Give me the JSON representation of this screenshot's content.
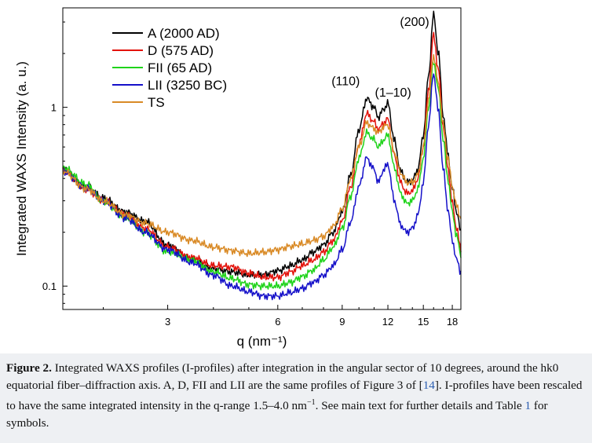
{
  "chart_data": {
    "type": "line",
    "title": "",
    "xlabel": "q (nm⁻¹)",
    "ylabel": "Integrated WAXS Intensity (a. u.)",
    "xscale": "log",
    "yscale": "log",
    "xlim": [
      1.55,
      19.0
    ],
    "ylim": [
      0.074,
      3.6
    ],
    "xticks": [
      3,
      6,
      9,
      12,
      15,
      18
    ],
    "xtick_labels": [
      "3",
      "6",
      "9",
      "12",
      "15",
      "18"
    ],
    "yticks": [
      0.1,
      1
    ],
    "ytick_labels": [
      "0.1",
      "1"
    ],
    "grid": false,
    "legend_position": "top-left",
    "annotations": [
      {
        "text": "(200)",
        "x": 14.2,
        "y": 2.85
      },
      {
        "text": "(110)",
        "x": 9.2,
        "y": 1.33
      },
      {
        "text": "(1–10)",
        "x": 12.4,
        "y": 1.15
      }
    ],
    "series": [
      {
        "name": "A (2000 AD)",
        "color": "#000000",
        "x": [
          1.55,
          1.8,
          2.0,
          2.3,
          2.6,
          3.0,
          3.5,
          4.0,
          4.5,
          5.0,
          5.5,
          6.0,
          6.5,
          7.0,
          7.5,
          8.0,
          8.5,
          9.0,
          9.5,
          10.0,
          10.5,
          11.0,
          11.3,
          11.7,
          12.0,
          12.5,
          13.0,
          13.5,
          14.0,
          14.5,
          15.0,
          15.5,
          16.0,
          16.5,
          17.0,
          17.5,
          18.0,
          18.5,
          19.0
        ],
        "y": [
          0.45,
          0.36,
          0.31,
          0.26,
          0.23,
          0.17,
          0.14,
          0.125,
          0.12,
          0.115,
          0.116,
          0.122,
          0.13,
          0.14,
          0.155,
          0.17,
          0.2,
          0.26,
          0.42,
          0.75,
          1.12,
          1.0,
          0.88,
          0.98,
          1.05,
          0.65,
          0.44,
          0.38,
          0.39,
          0.45,
          0.7,
          1.5,
          3.3,
          2.0,
          0.9,
          0.55,
          0.35,
          0.26,
          0.2
        ]
      },
      {
        "name": "D (575 AD)",
        "color": "#e3120b",
        "x": [
          1.55,
          1.8,
          2.0,
          2.3,
          2.6,
          3.0,
          3.5,
          4.0,
          4.5,
          5.0,
          5.5,
          6.0,
          6.5,
          7.0,
          7.5,
          8.0,
          8.5,
          9.0,
          9.5,
          10.0,
          10.5,
          11.0,
          11.3,
          11.7,
          12.0,
          12.5,
          13.0,
          13.5,
          14.0,
          14.5,
          15.0,
          15.5,
          16.0,
          16.5,
          17.0,
          17.5,
          18.0,
          18.5,
          19.0
        ],
        "y": [
          0.44,
          0.35,
          0.3,
          0.25,
          0.21,
          0.165,
          0.145,
          0.13,
          0.128,
          0.118,
          0.112,
          0.112,
          0.12,
          0.13,
          0.14,
          0.155,
          0.18,
          0.23,
          0.36,
          0.62,
          0.92,
          0.83,
          0.75,
          0.82,
          0.86,
          0.54,
          0.38,
          0.33,
          0.34,
          0.4,
          0.6,
          1.25,
          2.55,
          1.6,
          0.78,
          0.46,
          0.29,
          0.21,
          0.16
        ]
      },
      {
        "name": "FII (65 AD)",
        "color": "#1fd31a",
        "x": [
          1.55,
          1.8,
          2.0,
          2.3,
          2.6,
          3.0,
          3.5,
          4.0,
          4.5,
          5.0,
          5.5,
          6.0,
          6.5,
          7.0,
          7.5,
          8.0,
          8.5,
          9.0,
          9.5,
          10.0,
          10.5,
          11.0,
          11.3,
          11.7,
          12.0,
          12.5,
          13.0,
          13.5,
          14.0,
          14.5,
          15.0,
          15.5,
          16.0,
          16.5,
          17.0,
          17.5,
          18.0,
          18.5,
          19.0
        ],
        "y": [
          0.46,
          0.37,
          0.3,
          0.24,
          0.2,
          0.155,
          0.14,
          0.12,
          0.11,
          0.102,
          0.1,
          0.1,
          0.105,
          0.113,
          0.123,
          0.14,
          0.165,
          0.21,
          0.32,
          0.52,
          0.72,
          0.66,
          0.6,
          0.66,
          0.7,
          0.46,
          0.33,
          0.29,
          0.3,
          0.35,
          0.52,
          1.0,
          1.8,
          1.25,
          0.66,
          0.4,
          0.26,
          0.19,
          0.15
        ]
      },
      {
        "name": "LII (3250 BC)",
        "color": "#1510c9",
        "x": [
          1.55,
          1.8,
          2.0,
          2.3,
          2.6,
          3.0,
          3.5,
          4.0,
          4.5,
          5.0,
          5.5,
          6.0,
          6.5,
          7.0,
          7.5,
          8.0,
          8.5,
          9.0,
          9.5,
          10.0,
          10.5,
          11.0,
          11.3,
          11.7,
          12.0,
          12.5,
          13.0,
          13.5,
          14.0,
          14.5,
          15.0,
          15.5,
          16.0,
          16.5,
          17.0,
          17.5,
          18.0,
          18.5,
          19.0
        ],
        "y": [
          0.44,
          0.35,
          0.3,
          0.24,
          0.2,
          0.16,
          0.135,
          0.115,
          0.1,
          0.093,
          0.088,
          0.088,
          0.092,
          0.097,
          0.105,
          0.115,
          0.13,
          0.16,
          0.23,
          0.36,
          0.52,
          0.45,
          0.38,
          0.45,
          0.48,
          0.3,
          0.22,
          0.2,
          0.21,
          0.25,
          0.38,
          0.8,
          1.55,
          0.95,
          0.45,
          0.27,
          0.18,
          0.14,
          0.12
        ]
      },
      {
        "name": "TS",
        "color": "#d98a26",
        "x": [
          1.55,
          1.8,
          2.0,
          2.3,
          2.6,
          3.0,
          3.5,
          4.0,
          4.5,
          5.0,
          5.5,
          6.0,
          6.5,
          7.0,
          7.5,
          8.0,
          8.5,
          9.0,
          9.5,
          10.0,
          10.5,
          11.0,
          11.3,
          11.7,
          12.0,
          12.5,
          13.0,
          13.5,
          14.0,
          14.5,
          15.0,
          15.5,
          16.0,
          16.5,
          17.0,
          17.5,
          18.0,
          18.5,
          19.0
        ],
        "y": [
          0.44,
          0.35,
          0.3,
          0.25,
          0.225,
          0.2,
          0.18,
          0.165,
          0.158,
          0.152,
          0.155,
          0.16,
          0.167,
          0.172,
          0.18,
          0.19,
          0.215,
          0.27,
          0.4,
          0.6,
          0.82,
          0.76,
          0.72,
          0.78,
          0.8,
          0.56,
          0.43,
          0.38,
          0.38,
          0.42,
          0.6,
          1.1,
          1.95,
          1.35,
          0.8,
          0.52,
          0.36,
          0.28,
          0.24
        ]
      }
    ]
  },
  "caption": {
    "label": "Figure 2.",
    "part1": " Integrated WAXS profiles (I-profiles) after integration in the angular sector of 10 degrees, around the hk0 equatorial fiber–diffraction axis. A, D, FII and LII are the same profiles of Figure 3 of [",
    "ref1": "14",
    "part2": "]. I-profiles have been rescaled to have the same integrated intensity in the q-range 1.5–4.0 nm",
    "sup": "−1",
    "part3": ". See main text for further details and Table ",
    "ref2": "1",
    "part4": " for symbols."
  }
}
